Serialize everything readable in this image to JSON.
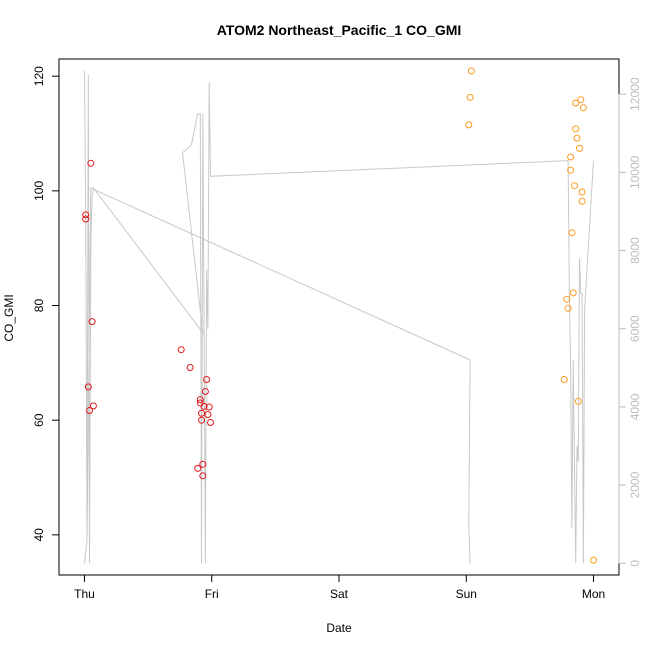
{
  "chart_data": {
    "type": "scatter",
    "title": "ATOM2 Northeast_Pacific_1 CO_GMI",
    "xlabel": "Date",
    "ylabel": "CO_GMI",
    "x_ticks": [
      "Thu",
      "Fri",
      "Sat",
      "Sun",
      "Mon"
    ],
    "x_range_days": [
      -0.2,
      4.2
    ],
    "ylim": [
      33,
      123
    ],
    "y_ticks": [
      40,
      60,
      80,
      100,
      120
    ],
    "y2lim": [
      -300,
      12900
    ],
    "y2_ticks": [
      0,
      2000,
      4000,
      6000,
      8000,
      10000,
      12000
    ],
    "colors": {
      "series1": "#e31a1c",
      "series2": "#ff9a1f",
      "altitude": "#c8c8c8",
      "axis": "#000000",
      "y2axis": "#bdbdbd"
    },
    "series": [
      {
        "color": "#e31a1c",
        "points": [
          [
            0.01,
            95.8
          ],
          [
            0.01,
            95.1
          ],
          [
            0.03,
            65.8
          ],
          [
            0.04,
            61.7
          ],
          [
            0.05,
            104.8
          ],
          [
            0.06,
            77.2
          ],
          [
            0.07,
            62.5
          ],
          [
            0.76,
            72.3
          ],
          [
            0.83,
            69.2
          ],
          [
            0.89,
            51.6
          ],
          [
            0.91,
            63.6
          ],
          [
            0.91,
            63.0
          ],
          [
            0.92,
            61.2
          ],
          [
            0.92,
            60.0
          ],
          [
            0.93,
            52.3
          ],
          [
            0.93,
            50.3
          ],
          [
            0.94,
            62.4
          ],
          [
            0.95,
            65.0
          ],
          [
            0.96,
            67.1
          ],
          [
            0.97,
            61.0
          ],
          [
            0.98,
            62.3
          ],
          [
            0.99,
            59.6
          ]
        ]
      },
      {
        "color": "#ff9a1f",
        "points": [
          [
            3.02,
            111.5
          ],
          [
            3.03,
            116.3
          ],
          [
            3.04,
            120.9
          ],
          [
            3.77,
            67.1
          ],
          [
            3.79,
            81.1
          ],
          [
            3.8,
            79.5
          ],
          [
            3.82,
            105.9
          ],
          [
            3.82,
            103.6
          ],
          [
            3.83,
            92.7
          ],
          [
            3.84,
            82.2
          ],
          [
            3.85,
            100.9
          ],
          [
            3.86,
            115.3
          ],
          [
            3.86,
            110.8
          ],
          [
            3.87,
            109.2
          ],
          [
            3.88,
            63.3
          ],
          [
            3.89,
            107.4
          ],
          [
            3.9,
            115.9
          ],
          [
            3.91,
            99.8
          ],
          [
            3.91,
            98.2
          ],
          [
            3.92,
            114.5
          ],
          [
            4.0,
            35.6
          ]
        ]
      }
    ],
    "altitude_line": [
      [
        0.0,
        12600
      ],
      [
        0.01,
        8900
      ],
      [
        0.02,
        700
      ],
      [
        0.03,
        12500
      ],
      [
        0.04,
        0
      ],
      [
        0.05,
        8200
      ],
      [
        0.06,
        9400
      ],
      [
        0.07,
        9600
      ],
      [
        0.93,
        5900
      ],
      [
        0.77,
        10500
      ],
      [
        0.84,
        10700
      ],
      [
        0.89,
        11500
      ],
      [
        0.91,
        11500
      ],
      [
        0.92,
        0
      ],
      [
        0.93,
        11500
      ],
      [
        0.95,
        0
      ],
      [
        0.96,
        7500
      ],
      [
        0.97,
        6000
      ],
      [
        0.98,
        12300
      ],
      [
        0.99,
        9900
      ],
      [
        3.8,
        10300
      ],
      [
        3.81,
        6800
      ],
      [
        3.82,
        5000
      ],
      [
        3.83,
        900
      ],
      [
        3.84,
        5200
      ],
      [
        3.86,
        0
      ],
      [
        3.87,
        3000
      ],
      [
        3.88,
        2600
      ],
      [
        3.89,
        7800
      ],
      [
        3.9,
        6900
      ],
      [
        3.91,
        6900
      ],
      [
        3.92,
        0
      ],
      [
        3.93,
        6500
      ],
      [
        4.0,
        10300
      ]
    ],
    "altitude_line_2": [
      [
        0.0,
        0
      ],
      [
        0.02,
        600
      ],
      [
        0.05,
        9600
      ],
      [
        3.03,
        5200
      ],
      [
        3.02,
        1000
      ],
      [
        3.03,
        0
      ]
    ]
  }
}
